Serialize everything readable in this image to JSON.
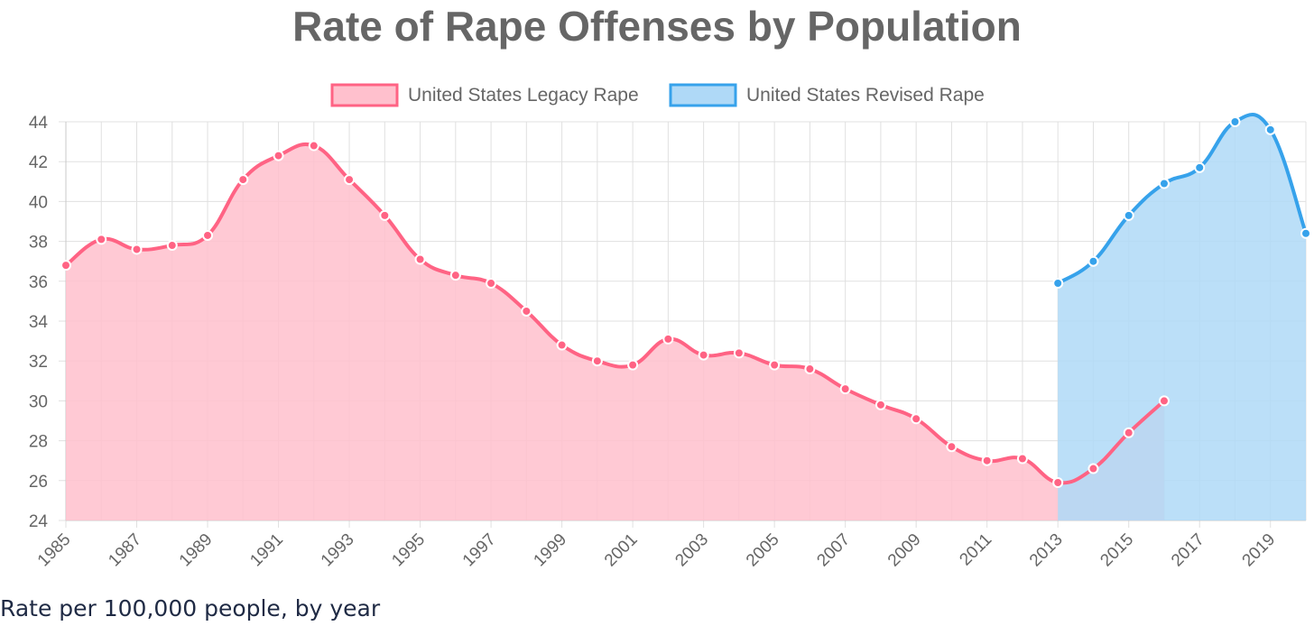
{
  "chart_data": {
    "type": "area",
    "title": "Rate of Rape Offenses by Population",
    "caption": "Rate per 100,000 people, by year",
    "xlabel": "",
    "ylabel": "",
    "ylim": [
      24,
      44
    ],
    "yticks": [
      24,
      26,
      28,
      30,
      32,
      34,
      36,
      38,
      40,
      42,
      44
    ],
    "xlim": [
      1985,
      2020
    ],
    "xticks": [
      1985,
      1987,
      1989,
      1991,
      1993,
      1995,
      1997,
      1999,
      2001,
      2003,
      2005,
      2007,
      2009,
      2011,
      2013,
      2015,
      2017,
      2019
    ],
    "grid": true,
    "legend_position": "top-center",
    "series": [
      {
        "name": "United States Legacy Rape",
        "color": "#ff6384",
        "fill": "#ffc0cd",
        "x": [
          1985,
          1986,
          1987,
          1988,
          1989,
          1990,
          1991,
          1992,
          1993,
          1994,
          1995,
          1996,
          1997,
          1998,
          1999,
          2000,
          2001,
          2002,
          2003,
          2004,
          2005,
          2006,
          2007,
          2008,
          2009,
          2010,
          2011,
          2012,
          2013,
          2014,
          2015,
          2016
        ],
        "values": [
          36.8,
          38.1,
          37.6,
          37.8,
          38.3,
          41.1,
          42.3,
          42.8,
          41.1,
          39.3,
          37.1,
          36.3,
          35.9,
          34.5,
          32.8,
          32.0,
          31.8,
          33.1,
          32.3,
          32.4,
          31.8,
          31.6,
          30.6,
          29.8,
          29.1,
          27.7,
          27.0,
          27.1,
          25.9,
          26.6,
          28.4,
          30.0
        ]
      },
      {
        "name": "United States Revised Rape",
        "color": "#36a2eb",
        "fill": "#afd9f7",
        "x": [
          2013,
          2014,
          2015,
          2016,
          2017,
          2018,
          2019,
          2020
        ],
        "values": [
          35.9,
          37.0,
          39.3,
          40.9,
          41.7,
          44.0,
          43.6,
          38.4
        ]
      }
    ]
  }
}
